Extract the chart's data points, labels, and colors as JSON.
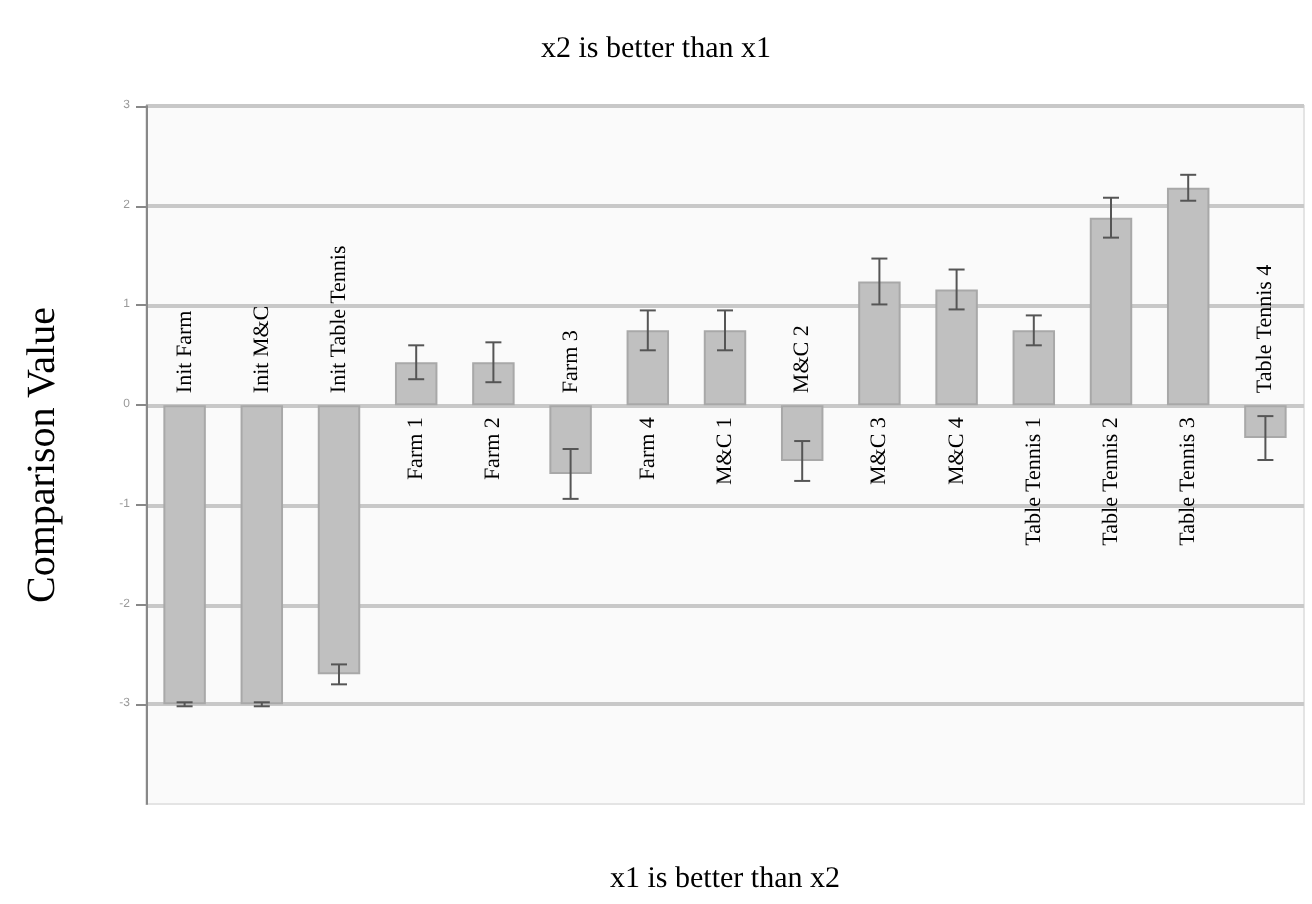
{
  "chart_data": {
    "type": "bar",
    "title": "x2 is better than x1",
    "xlabel": "x1 is better than x2",
    "ylabel": "Comparison Value",
    "categories": [
      "Init Farm",
      "Init M&C",
      "Init Table Tennis",
      "Farm 1",
      "Farm 2",
      "Farm 3",
      "Farm 4",
      "M&C 1",
      "M&C 2",
      "M&C 3",
      "M&C 4",
      "Table Tennis 1",
      "Table Tennis 2",
      "Table Tennis 3",
      "Table Tennis 4"
    ],
    "values": [
      -3,
      -3,
      -2.7,
      0.43,
      0.43,
      -0.69,
      0.75,
      0.75,
      -0.56,
      1.24,
      1.16,
      0.75,
      1.88,
      2.18,
      -0.33
    ],
    "errors": [
      0.02,
      0.02,
      0.1,
      0.17,
      0.2,
      0.25,
      0.2,
      0.2,
      0.2,
      0.23,
      0.2,
      0.15,
      0.2,
      0.13,
      0.22
    ],
    "color": "#c0c0c0",
    "ylim": [
      -4,
      3
    ],
    "yticks": [
      -3,
      -2,
      -1,
      0,
      1,
      2,
      3
    ],
    "grid": "y"
  }
}
